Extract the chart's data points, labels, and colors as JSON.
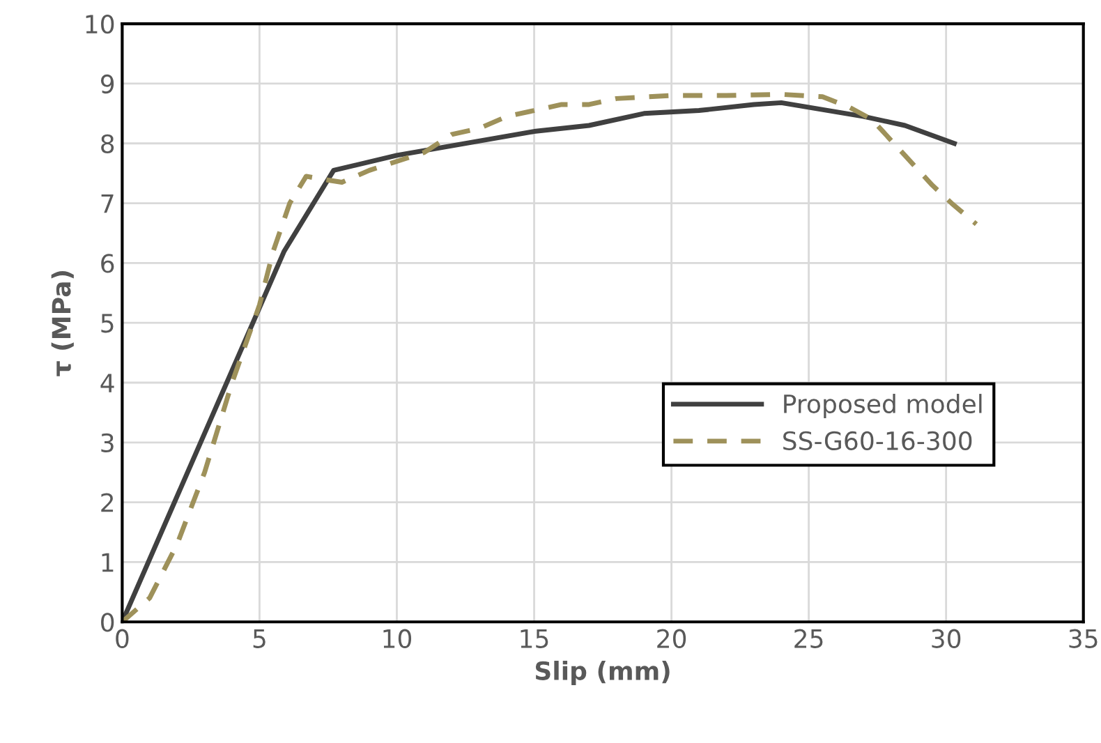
{
  "chart_data": {
    "type": "line",
    "xlabel": "Slip (mm)",
    "ylabel": "τ (MPa)",
    "xlim": [
      0,
      35
    ],
    "ylim": [
      0,
      10
    ],
    "xticks": [
      0,
      5,
      10,
      15,
      20,
      25,
      30,
      35
    ],
    "yticks": [
      0,
      1,
      2,
      3,
      4,
      5,
      6,
      7,
      8,
      9,
      10
    ],
    "grid": true,
    "legend": "right",
    "series": [
      {
        "name": "Proposed model",
        "color": "#404040",
        "line_style": "solid",
        "x": [
          0,
          5.9,
          7.7,
          10,
          15,
          17,
          19,
          21,
          23,
          24,
          27,
          28.5,
          30.3
        ],
        "values": [
          0,
          6.2,
          7.55,
          7.8,
          8.2,
          8.3,
          8.5,
          8.55,
          8.65,
          8.68,
          8.45,
          8.3,
          8.0
        ]
      },
      {
        "name": "SS-G60-16-300",
        "color": "#9e915a",
        "line_style": "dashed",
        "x": [
          0,
          1,
          2,
          3,
          4,
          5,
          5.5,
          6.1,
          6.7,
          7.3,
          8,
          9,
          10,
          11,
          12,
          13,
          14,
          15,
          16,
          17,
          18,
          20,
          22,
          24,
          25.5,
          26.5,
          27.3,
          28.5,
          29.5,
          30.2,
          31.1
        ],
        "values": [
          0,
          0.4,
          1.3,
          2.5,
          4.0,
          5.3,
          6.2,
          7.0,
          7.45,
          7.4,
          7.35,
          7.55,
          7.7,
          7.85,
          8.15,
          8.25,
          8.45,
          8.55,
          8.65,
          8.65,
          8.75,
          8.8,
          8.8,
          8.82,
          8.78,
          8.6,
          8.4,
          7.8,
          7.3,
          7.0,
          6.65
        ]
      }
    ]
  }
}
